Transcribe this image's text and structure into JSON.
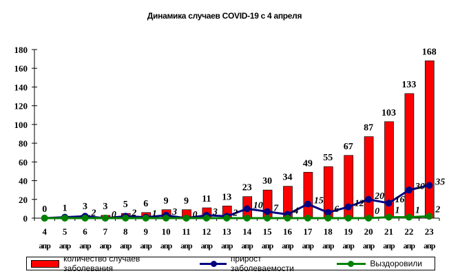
{
  "chart_data": {
    "type": "bar",
    "title": "Динамика случаев COVID-19 с 4 апреля",
    "xlabel": "",
    "ylabel": "",
    "ylim": [
      0,
      180
    ],
    "yticks": [
      0,
      20,
      40,
      60,
      80,
      100,
      120,
      140,
      160,
      180
    ],
    "categories": [
      "4",
      "5",
      "6",
      "7",
      "8",
      "9",
      "10",
      "11",
      "12",
      "13",
      "14",
      "15",
      "16",
      "17",
      "18",
      "19",
      "20",
      "21",
      "22",
      "23"
    ],
    "category_suffix": "апр",
    "series": [
      {
        "name": "количество случаев заболевания",
        "type": "bar",
        "color": "#ff0000",
        "values": [
          0,
          1,
          3,
          3,
          5,
          6,
          9,
          9,
          11,
          13,
          23,
          30,
          34,
          49,
          55,
          67,
          87,
          103,
          133,
          168
        ],
        "labels": [
          "0",
          "1",
          "3",
          "3",
          "5",
          "6",
          "9",
          "9",
          "11",
          "13",
          "23",
          "30",
          "34",
          "49",
          "55",
          "67",
          "87",
          "103",
          "133",
          "168"
        ]
      },
      {
        "name": "прирост заболеваемости",
        "type": "line",
        "color": "#000080",
        "values": [
          0,
          1,
          2,
          0,
          2,
          1,
          3,
          0,
          3,
          2,
          10,
          7,
          4,
          15,
          6,
          12,
          20,
          16,
          30,
          35
        ],
        "labels": [
          null,
          null,
          "2",
          "0",
          "2",
          "1",
          "3",
          "0",
          "3",
          "2",
          "10",
          "7",
          "4",
          "15",
          "6",
          "12",
          "20",
          "16",
          "30",
          "35"
        ]
      },
      {
        "name": "Выздоровили",
        "type": "line",
        "color": "#008000",
        "values": [
          0,
          0,
          0,
          0,
          0,
          0,
          0,
          0,
          0,
          0,
          0,
          0,
          0,
          0,
          0,
          0,
          0,
          1,
          1,
          2
        ],
        "labels": [
          null,
          null,
          null,
          null,
          null,
          null,
          null,
          null,
          null,
          null,
          null,
          null,
          null,
          null,
          null,
          null,
          "0",
          "1",
          "1",
          "2"
        ]
      }
    ],
    "grid": false,
    "legend_position": "bottom"
  }
}
